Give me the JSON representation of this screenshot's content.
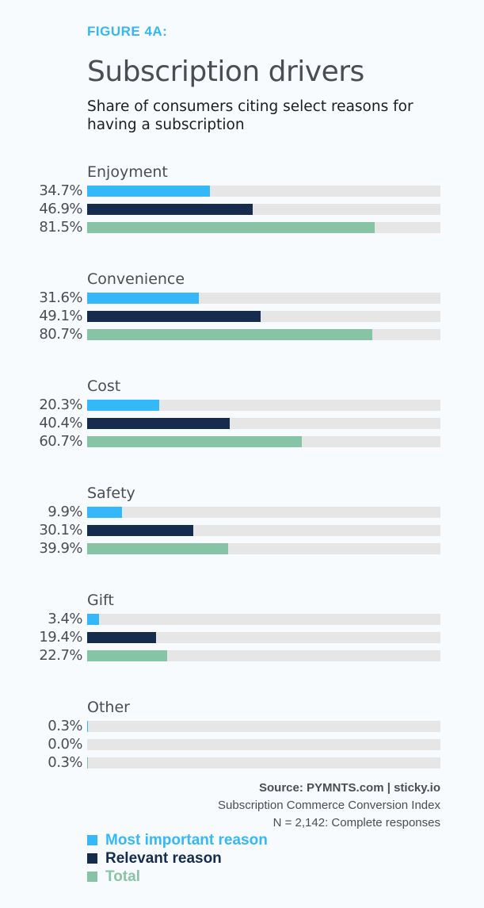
{
  "header": {
    "figure_label": "FIGURE 4A:",
    "title": "Subscription drivers",
    "subtitle": "Share of consumers citing select reasons for having a subscription"
  },
  "colors": {
    "most_important": "#35b8fa",
    "relevant": "#162c4e",
    "total": "#87c4a6",
    "track": "#e6e6e6"
  },
  "source": {
    "line1": "Source: PYMNTS.com  |  sticky.io",
    "line2": "Subscription Commerce Conversion Index",
    "line3": "N = 2,142: Complete responses"
  },
  "chart_data": {
    "type": "bar",
    "orientation": "horizontal",
    "title": "Subscription drivers",
    "subtitle": "Share of consumers citing select reasons for having a subscription",
    "xlim": [
      0,
      100
    ],
    "grid": false,
    "legend_position": "bottom-left",
    "categories": [
      "Enjoyment",
      "Convenience",
      "Cost",
      "Safety",
      "Gift",
      "Other"
    ],
    "series": [
      {
        "name": "Most important reason",
        "color": "#35b8fa",
        "values": [
          34.7,
          31.6,
          20.3,
          9.9,
          3.4,
          0.3
        ],
        "labels": [
          "34.7%",
          "31.6%",
          "20.3%",
          "9.9%",
          "3.4%",
          "0.3%"
        ]
      },
      {
        "name": "Relevant reason",
        "color": "#162c4e",
        "values": [
          46.9,
          49.1,
          40.4,
          30.1,
          19.4,
          0.0
        ],
        "labels": [
          "46.9%",
          "49.1%",
          "40.4%",
          "30.1%",
          "19.4%",
          "0.0%"
        ]
      },
      {
        "name": "Total",
        "color": "#87c4a6",
        "values": [
          81.5,
          80.7,
          60.7,
          39.9,
          22.7,
          0.3
        ],
        "labels": [
          "81.5%",
          "80.7%",
          "60.7%",
          "39.9%",
          "22.7%",
          "0.3%"
        ]
      }
    ],
    "legend": [
      "Most important reason",
      "Relevant reason",
      "Total"
    ]
  }
}
